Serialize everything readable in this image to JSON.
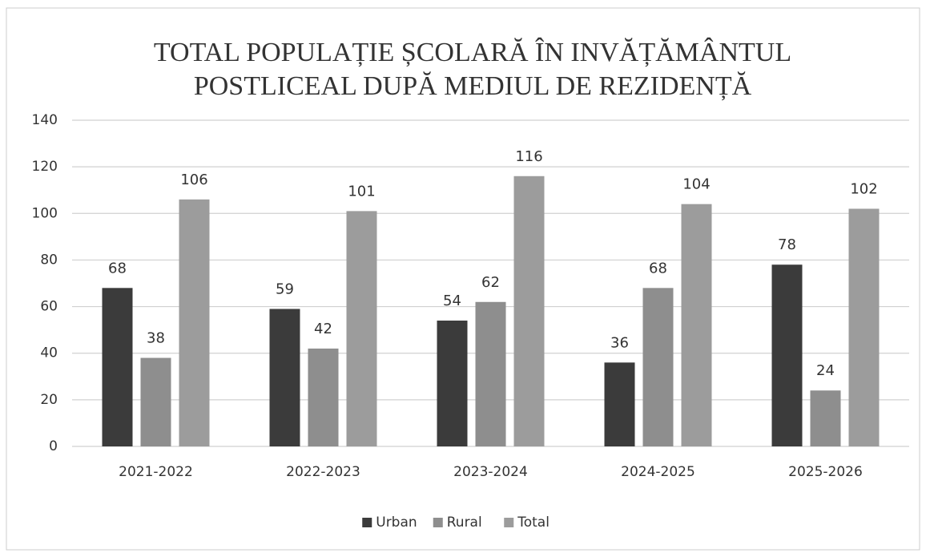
{
  "chart_data": {
    "type": "bar",
    "title": [
      "TOTAL POPULAȚIE ȘCOLARĂ ÎN INVĂȚĂMÂNTUL",
      "POSTLICEAL DUPĂ MEDIUL DE REZIDENȚĂ"
    ],
    "categories": [
      "2021-2022",
      "2022-2023",
      "2023-2024",
      "2024-2025",
      "2025-2026"
    ],
    "series": [
      {
        "name": "Urban",
        "color": "#3b3b3b",
        "values": [
          68,
          59,
          54,
          36,
          78
        ]
      },
      {
        "name": "Rural",
        "color": "#8e8e8e",
        "values": [
          38,
          42,
          62,
          68,
          24
        ]
      },
      {
        "name": "Total",
        "color": "#9c9c9c",
        "values": [
          106,
          101,
          116,
          104,
          102
        ]
      }
    ],
    "ylim": [
      0,
      140
    ],
    "yticks": [
      0,
      20,
      40,
      60,
      80,
      100,
      120,
      140
    ],
    "grid": true,
    "legend": "bottom"
  }
}
